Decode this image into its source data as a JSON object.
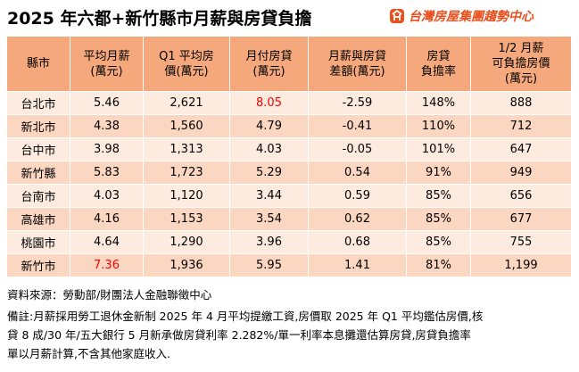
{
  "header": {
    "title": "2025 年六都+新竹縣市月薪與房貸負擔",
    "logo_text": "台灣房屋集團趨勢中心"
  },
  "table": {
    "columns": [
      "縣市",
      "平均月薪\n(萬元)",
      "Q1 平均房\n價(萬元)",
      "月付房貸\n(萬元)",
      "月薪與房貸\n差額(萬元)",
      "房貸\n負擔率",
      "1/2 月薪\n可負擔房價\n(萬元)"
    ],
    "rows": [
      [
        "台北市",
        "5.46",
        "2,621",
        "8.05",
        "-2.59",
        "148%",
        "888"
      ],
      [
        "新北市",
        "4.38",
        "1,560",
        "4.79",
        "-0.41",
        "110%",
        "712"
      ],
      [
        "台中市",
        "3.98",
        "1,313",
        "4.03",
        "-0.05",
        "101%",
        "647"
      ],
      [
        "新竹縣",
        "5.83",
        "1,723",
        "5.29",
        "0.54",
        "91%",
        "949"
      ],
      [
        "台南市",
        "4.03",
        "1,120",
        "3.44",
        "0.59",
        "85%",
        "656"
      ],
      [
        "高雄市",
        "4.16",
        "1,153",
        "3.54",
        "0.62",
        "85%",
        "677"
      ],
      [
        "桃園市",
        "4.64",
        "1,290",
        "3.96",
        "0.68",
        "85%",
        "755"
      ],
      [
        "新竹市",
        "7.36",
        "1,936",
        "5.95",
        "1.41",
        "81%",
        "1,199"
      ]
    ],
    "highlight_cells": [
      {
        "row": 0,
        "col": 3
      },
      {
        "row": 7,
        "col": 1
      }
    ],
    "highlight_color": "#ff0000"
  },
  "footer": {
    "source": "資料來源：勞動部/財團法人金融聯徵中心",
    "note_lines": [
      "備註:月薪採用勞工退休金新制 2025 年 4 月平均提繳工資,房價取 2025 年 Q1 平均鑑估房價,核",
      "貸 8 成/30 年/五大銀行 5 月新承做房貸利率 2.282%/單一利率本息攤還估算房貸,房貸負擔率",
      "單以月薪計算,不含其他家庭收入."
    ]
  }
}
